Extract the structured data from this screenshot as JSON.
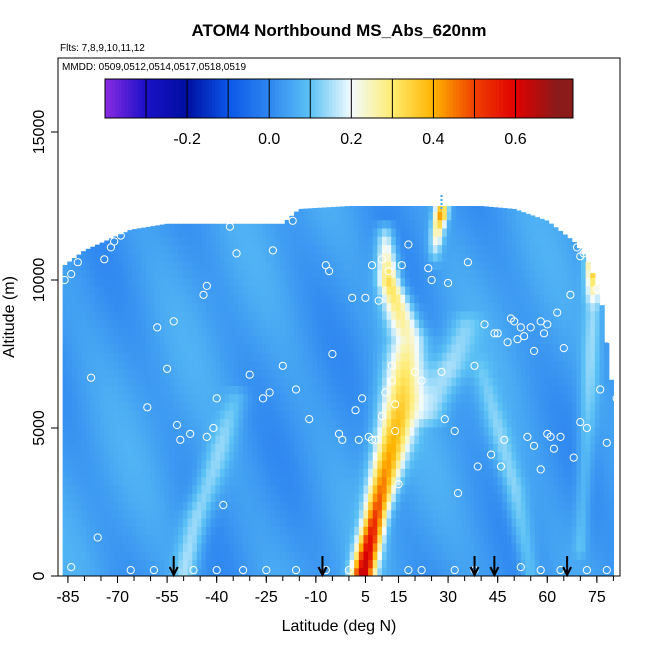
{
  "chart_data": {
    "type": "heatmap",
    "title": "ATOM4 Northbound MS_Abs_620nm",
    "subtitle_flights": "Flts: 7,8,9,10,11,12",
    "subtitle_dates": "MMDD: 0509,0512,0514,0517,0518,0519",
    "xlabel": "Latitude (deg N)",
    "ylabel": "Altitude (m)",
    "xlim": [
      -88,
      82
    ],
    "ylim": [
      0,
      17500
    ],
    "x_tick_labels": [
      "-85",
      "-70",
      "-55",
      "-40",
      "-25",
      "-10",
      "5",
      "15",
      "30",
      "45",
      "60",
      "75"
    ],
    "x_tick_values": [
      -85,
      -70,
      -55,
      -40,
      -25,
      -10,
      5,
      15,
      30,
      45,
      60,
      75
    ],
    "y_tick_labels": [
      "0",
      "5000",
      "10000",
      "15000"
    ],
    "y_tick_values": [
      0,
      5000,
      10000,
      15000
    ],
    "colorbar": {
      "range": [
        -0.4,
        0.74
      ],
      "tick_labels": [
        "-0.2",
        "0.0",
        "0.2",
        "0.4",
        "0.6"
      ],
      "tick_values": [
        -0.2,
        0.0,
        0.2,
        0.4,
        0.6
      ],
      "stops": [
        {
          "value": -0.4,
          "color": "#8a2be2"
        },
        {
          "value": -0.3,
          "color": "#1a10c8"
        },
        {
          "value": -0.2,
          "color": "#000fa0"
        },
        {
          "value": -0.1,
          "color": "#0a55e8"
        },
        {
          "value": 0.0,
          "color": "#2e86f0"
        },
        {
          "value": 0.1,
          "color": "#5cc2f5"
        },
        {
          "value": 0.2,
          "color": "#f2fbff"
        },
        {
          "value": 0.3,
          "color": "#ffec70"
        },
        {
          "value": 0.4,
          "color": "#ffb300"
        },
        {
          "value": 0.5,
          "color": "#f04000"
        },
        {
          "value": 0.6,
          "color": "#e00000"
        },
        {
          "value": 0.7,
          "color": "#8b1a1a"
        }
      ]
    },
    "coverage": [
      {
        "lat": -87,
        "top": 2200
      },
      {
        "lat": -86,
        "top": 10500
      },
      {
        "lat": -80,
        "top": 11000
      },
      {
        "lat": -74,
        "top": 11300
      },
      {
        "lat": -66,
        "top": 11700
      },
      {
        "lat": -55,
        "top": 11900
      },
      {
        "lat": -40,
        "top": 11900
      },
      {
        "lat": -20,
        "top": 11900
      },
      {
        "lat": -15,
        "top": 12400
      },
      {
        "lat": 0,
        "top": 12500
      },
      {
        "lat": 20,
        "top": 12500
      },
      {
        "lat": 40,
        "top": 12500
      },
      {
        "lat": 50,
        "top": 12400
      },
      {
        "lat": 60,
        "top": 12000
      },
      {
        "lat": 68,
        "top": 11300
      },
      {
        "lat": 72,
        "top": 10700
      },
      {
        "lat": 76,
        "top": 9600
      },
      {
        "lat": 80,
        "top": 6000
      },
      {
        "lat": 80.5,
        "top": 0
      }
    ],
    "background_value": 0.04,
    "plumes": [
      {
        "alt": [
          0,
          2000,
          4000,
          6000,
          8000,
          10000,
          11500
        ],
        "lat": [
          4,
          8,
          12,
          16,
          18,
          12,
          11
        ],
        "width": [
          5,
          5,
          7,
          9,
          8,
          5,
          4
        ],
        "peak": [
          0.62,
          0.5,
          0.42,
          0.32,
          0.25,
          0.35,
          0.2
        ]
      },
      {
        "alt": [
          0,
          2000,
          4000,
          6000
        ],
        "lat": [
          -50,
          -46,
          -40,
          -34
        ],
        "width": [
          5,
          6,
          6,
          5
        ],
        "peak": [
          0.15,
          0.17,
          0.13,
          0.1
        ]
      },
      {
        "alt": [
          0,
          3000,
          5000,
          7000
        ],
        "lat": [
          55,
          50,
          45,
          40
        ],
        "width": [
          4,
          5,
          5,
          4
        ],
        "peak": [
          0.12,
          0.14,
          0.12,
          0.08
        ]
      },
      {
        "alt": [
          1000,
          5000,
          9000,
          11500
        ],
        "lat": [
          70,
          72,
          74,
          74
        ],
        "width": [
          3,
          4,
          4,
          3
        ],
        "peak": [
          0.1,
          0.12,
          0.14,
          0.6
        ]
      },
      {
        "alt": [
          5500,
          7000,
          8500
        ],
        "lat": [
          25,
          30,
          35
        ],
        "width": [
          7,
          8,
          7
        ],
        "peak": [
          0.12,
          0.16,
          0.1
        ]
      },
      {
        "alt": [
          11000,
          11800,
          12300
        ],
        "lat": [
          26,
          27,
          28
        ],
        "width": [
          3,
          3,
          3
        ],
        "peak": [
          0.15,
          0.3,
          0.45
        ]
      }
    ],
    "aircraft_profile_points": [
      [
        -88,
        7000
      ],
      [
        -86,
        10000
      ],
      [
        -84,
        10200
      ],
      [
        -82,
        10600
      ],
      [
        -78,
        6700
      ],
      [
        -76,
        1300
      ],
      [
        -74,
        10700
      ],
      [
        -72,
        11100
      ],
      [
        -71,
        11300
      ],
      [
        -69,
        11500
      ],
      [
        -61,
        5700
      ],
      [
        -58,
        8400
      ],
      [
        -55,
        7000
      ],
      [
        -53,
        8600
      ],
      [
        -52,
        5100
      ],
      [
        -51,
        4600
      ],
      [
        -48,
        4800
      ],
      [
        -44,
        9500
      ],
      [
        -43,
        9800
      ],
      [
        -43,
        4700
      ],
      [
        -41,
        5000
      ],
      [
        -40,
        6000
      ],
      [
        -38,
        2400
      ],
      [
        -36,
        11800
      ],
      [
        -34,
        10900
      ],
      [
        -30,
        6800
      ],
      [
        -26,
        6000
      ],
      [
        -24,
        6200
      ],
      [
        -23,
        11000
      ],
      [
        -20,
        7100
      ],
      [
        -17,
        12000
      ],
      [
        -16,
        6300
      ],
      [
        -12,
        5300
      ],
      [
        -7,
        10500
      ],
      [
        -6,
        10300
      ],
      [
        -5,
        7500
      ],
      [
        -3,
        4800
      ],
      [
        -2,
        4600
      ],
      [
        1,
        9400
      ],
      [
        2,
        5600
      ],
      [
        3,
        4600
      ],
      [
        4,
        6000
      ],
      [
        5,
        9400
      ],
      [
        6,
        4700
      ],
      [
        7,
        4600
      ],
      [
        7,
        10500
      ],
      [
        8,
        4600
      ],
      [
        9,
        9300
      ],
      [
        10,
        5400
      ],
      [
        10,
        10700
      ],
      [
        11,
        6200
      ],
      [
        12,
        10300
      ],
      [
        13,
        6600
      ],
      [
        13,
        7100
      ],
      [
        14,
        5800
      ],
      [
        14,
        4900
      ],
      [
        15,
        3100
      ],
      [
        16,
        10500
      ],
      [
        18,
        11200
      ],
      [
        20,
        6900
      ],
      [
        22,
        6600
      ],
      [
        24,
        10400
      ],
      [
        25,
        10000
      ],
      [
        28,
        6900
      ],
      [
        29,
        5300
      ],
      [
        30,
        9900
      ],
      [
        32,
        4900
      ],
      [
        33,
        2800
      ],
      [
        36,
        10600
      ],
      [
        38,
        7100
      ],
      [
        39,
        3700
      ],
      [
        41,
        8500
      ],
      [
        43,
        4100
      ],
      [
        44,
        8200
      ],
      [
        45,
        8200
      ],
      [
        46,
        3700
      ],
      [
        47,
        4600
      ],
      [
        48,
        7900
      ],
      [
        49,
        8700
      ],
      [
        50,
        8600
      ],
      [
        51,
        8000
      ],
      [
        52,
        8400
      ],
      [
        53,
        8100
      ],
      [
        54,
        4700
      ],
      [
        55,
        8400
      ],
      [
        56,
        7600
      ],
      [
        56,
        4400
      ],
      [
        58,
        8600
      ],
      [
        58,
        3600
      ],
      [
        59,
        8200
      ],
      [
        60,
        8500
      ],
      [
        60,
        4800
      ],
      [
        61,
        4700
      ],
      [
        62,
        4300
      ],
      [
        63,
        8900
      ],
      [
        64,
        4700
      ],
      [
        65,
        7700
      ],
      [
        67,
        9500
      ],
      [
        68,
        4000
      ],
      [
        69,
        11100
      ],
      [
        70,
        10800
      ],
      [
        70,
        5200
      ],
      [
        71,
        10900
      ],
      [
        72,
        5000
      ],
      [
        73,
        11200
      ],
      [
        75,
        9700
      ],
      [
        76,
        6300
      ],
      [
        78,
        4500
      ],
      [
        79,
        8000
      ],
      [
        80,
        9400
      ],
      [
        81,
        6000
      ],
      [
        82,
        4900
      ],
      [
        -84,
        300
      ],
      [
        -66,
        200
      ],
      [
        -59,
        200
      ],
      [
        -47,
        200
      ],
      [
        -40,
        200
      ],
      [
        -32,
        200
      ],
      [
        -25,
        200
      ],
      [
        -16,
        200
      ],
      [
        -7,
        200
      ],
      [
        0,
        200
      ],
      [
        18,
        200
      ],
      [
        22,
        200
      ],
      [
        32,
        200
      ],
      [
        38,
        200
      ],
      [
        52,
        300
      ],
      [
        58,
        200
      ],
      [
        64,
        200
      ],
      [
        72,
        200
      ],
      [
        78,
        200
      ]
    ],
    "flight_arrows_lat": [
      -53,
      -8,
      38,
      44,
      66
    ],
    "dash_marker": {
      "lat": 28,
      "alt_low": 12400,
      "alt_high": 12900,
      "color": "#3fa9f5"
    }
  }
}
